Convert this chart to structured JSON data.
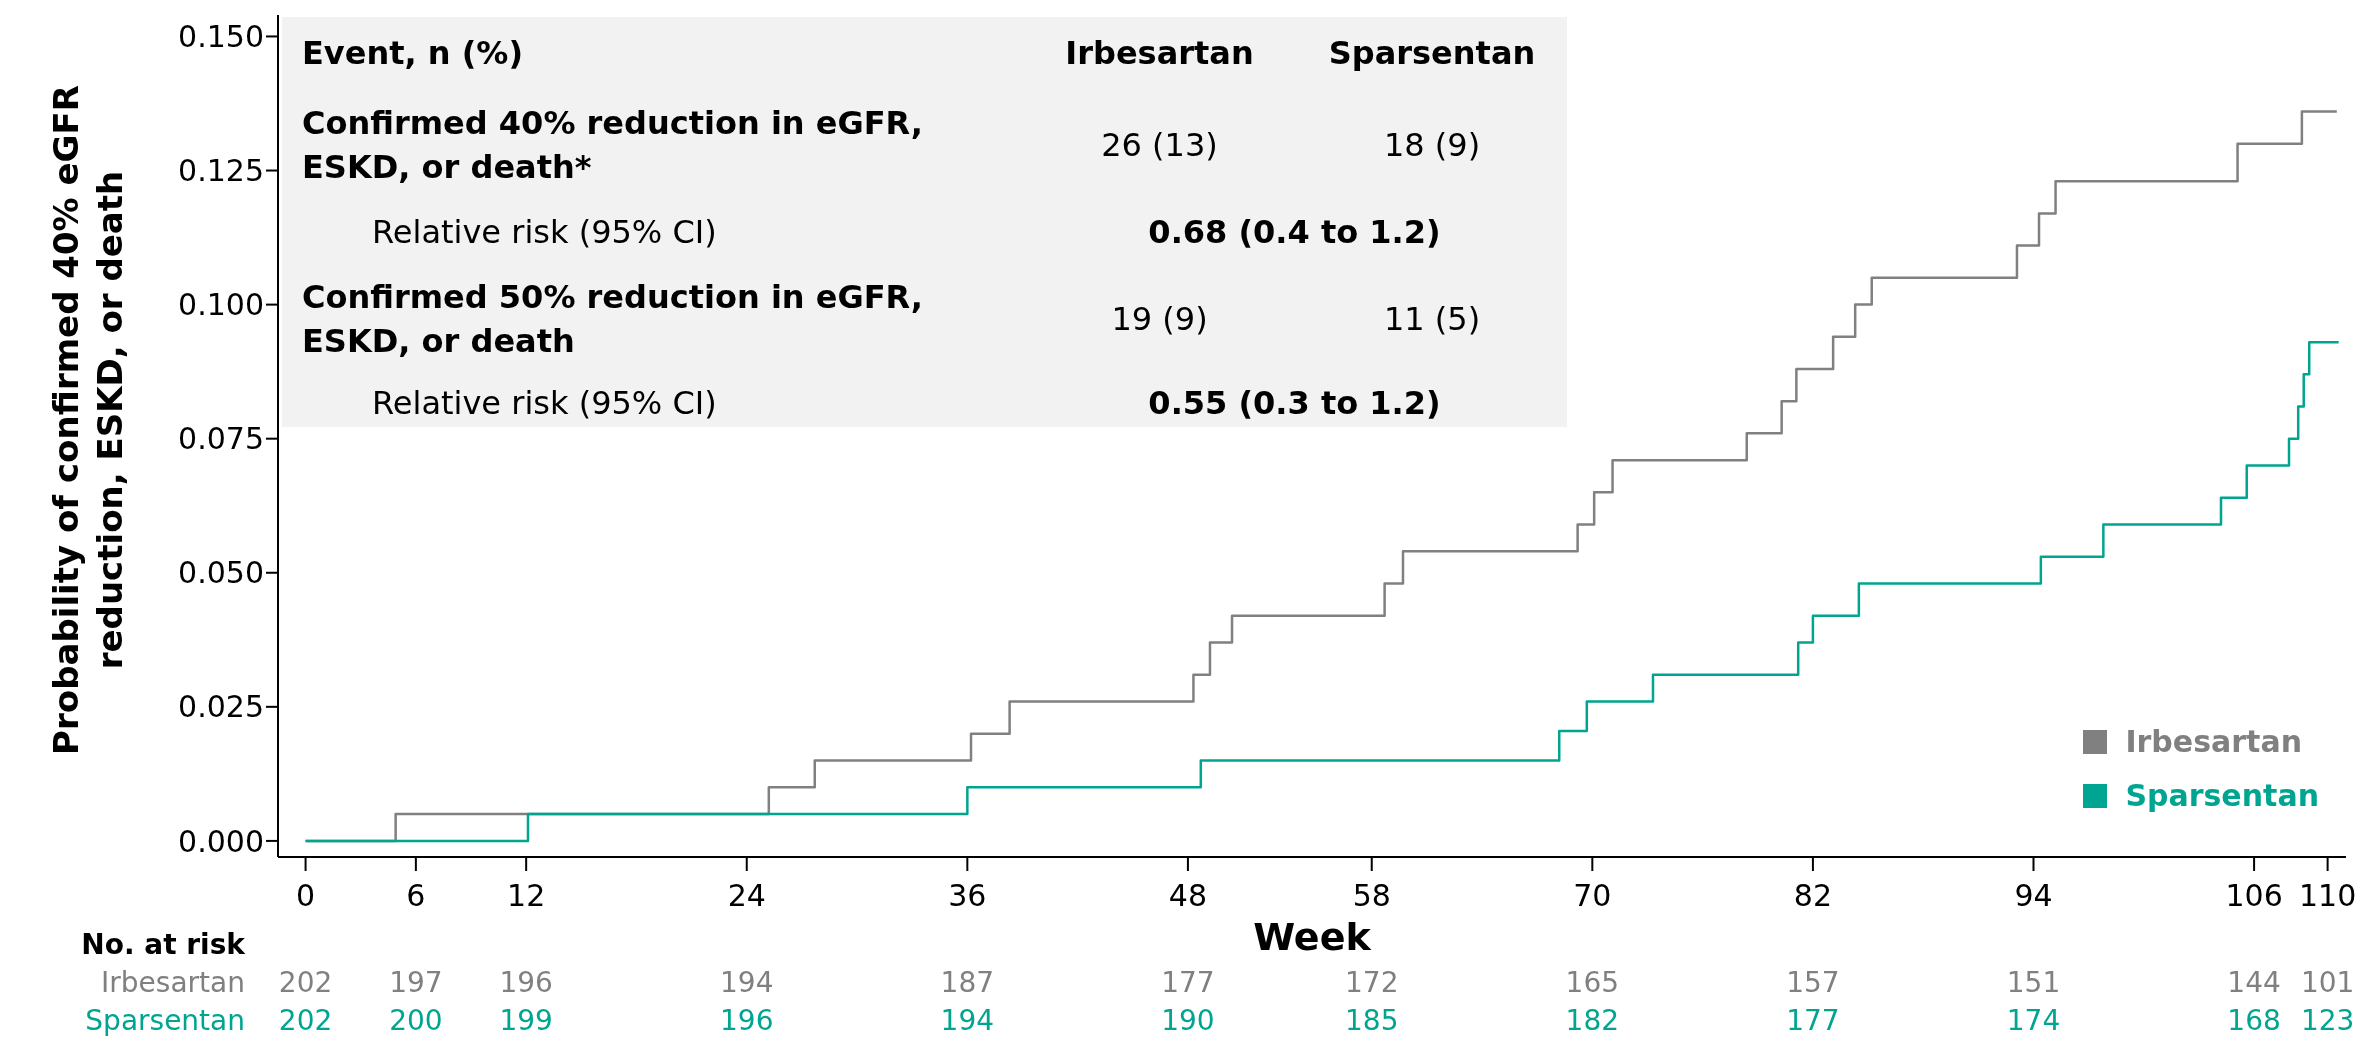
{
  "chart_data": {
    "type": "step",
    "ylabel": "Probability of confirmed 40% eGFR reduction, ESKD, or death",
    "xlabel": "Week",
    "xlim": [
      -1.5,
      111
    ],
    "xticks": [
      0,
      6,
      12,
      24,
      36,
      48,
      58,
      70,
      82,
      94,
      106,
      110
    ],
    "ylim": [
      -0.003,
      0.154
    ],
    "yticks": [
      {
        "value": 0,
        "label": "0.000"
      },
      {
        "value": 0.025,
        "label": "0.025"
      },
      {
        "value": 0.05,
        "label": "0.050"
      },
      {
        "value": 0.075,
        "label": "0.075"
      },
      {
        "value": 0.1,
        "label": "0.100"
      },
      {
        "value": 0.125,
        "label": "0.125"
      },
      {
        "value": 0.15,
        "label": "0.150"
      }
    ],
    "legend": "bottom right",
    "marker": "none",
    "line_style": "solid",
    "series": [
      {
        "name": "Irbesartan",
        "color": "#808080",
        "x": [
          0,
          4.9,
          25.2,
          27.7,
          36.2,
          38.3,
          48.3,
          49.2,
          50.4,
          58.7,
          59.7,
          69.2,
          70.1,
          71.1,
          78.4,
          80.3,
          81.1,
          83.1,
          84.3,
          85.2,
          93.1,
          94.3,
          95.2,
          105.1,
          108.6,
          110.5
        ],
        "values": [
          0,
          0.005,
          0.01,
          0.015,
          0.02,
          0.026,
          0.031,
          0.037,
          0.042,
          0.048,
          0.054,
          0.059,
          0.065,
          0.071,
          0.076,
          0.082,
          0.088,
          0.094,
          0.1,
          0.105,
          0.111,
          0.117,
          0.123,
          0.13,
          0.136,
          0.136
        ]
      },
      {
        "name": "Sparsentan",
        "color": "#00a591",
        "x": [
          0,
          12.1,
          36,
          48.7,
          68.2,
          69.7,
          73.3,
          81.2,
          82,
          84.5,
          94.4,
          97.8,
          104.2,
          105.6,
          107.9,
          108.4,
          108.7,
          109,
          110.6
        ],
        "values": [
          0,
          0.005,
          0.01,
          0.015,
          0.0205,
          0.026,
          0.031,
          0.037,
          0.042,
          0.048,
          0.053,
          0.059,
          0.064,
          0.07,
          0.075,
          0.081,
          0.087,
          0.093,
          0.093
        ]
      }
    ],
    "annotations": [
      "Event, n (%)",
      "Confirmed 40% reduction in eGFR, ESKD, or death*",
      "26 (13)",
      "18 (9)",
      "Relative risk (95% CI)",
      "0.68 (0.4 to 1.2)",
      "Confirmed 50% reduction in eGFR, ESKD, or death",
      "19 (9)",
      "11 (5)",
      "Relative risk (95% CI)",
      "0.55 (0.3 to 1.2)",
      "No. at risk",
      "202",
      "197",
      "196",
      "194",
      "187",
      "177",
      "172",
      "165",
      "157",
      "151",
      "144",
      "101",
      "202",
      "200",
      "199",
      "196",
      "194",
      "190",
      "185",
      "182",
      "177",
      "174",
      "168",
      "123"
    ]
  }
}
